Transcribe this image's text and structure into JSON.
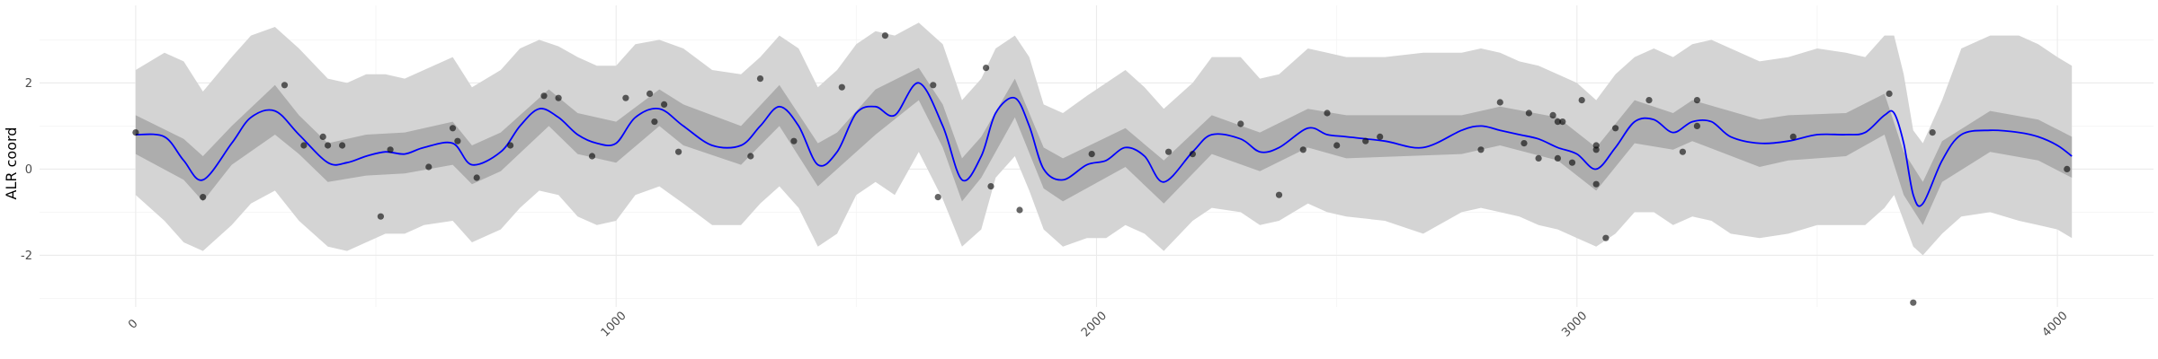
{
  "chart_data": {
    "type": "line",
    "title": "",
    "xlabel": "",
    "ylabel": "ALR coord",
    "xlim": [
      -200,
      4200
    ],
    "ylim": [
      -3.2,
      3.8
    ],
    "x_ticks": [
      0,
      1000,
      2000,
      3000,
      4000
    ],
    "x_tick_labels": [
      "0",
      "1000",
      "2000",
      "3000",
      "4000"
    ],
    "x_tick_rotation_deg": 45,
    "y_ticks": [
      -2,
      0,
      2
    ],
    "y_tick_labels": [
      "-2",
      "0",
      "2"
    ],
    "grid": true,
    "legend": "none",
    "colors": {
      "mean_line": "#0000ff",
      "inner_band": "#adadad",
      "outer_band": "#d4d4d4",
      "points": "#000000"
    },
    "series": [
      {
        "role": "posterior-mean",
        "x": [
          0,
          60,
          100,
          140,
          200,
          240,
          290,
          340,
          400,
          440,
          480,
          520,
          560,
          600,
          660,
          700,
          760,
          800,
          840,
          880,
          920,
          960,
          1000,
          1040,
          1090,
          1140,
          1200,
          1260,
          1300,
          1340,
          1380,
          1420,
          1460,
          1500,
          1540,
          1580,
          1630,
          1680,
          1720,
          1760,
          1790,
          1830,
          1860,
          1890,
          1930,
          1980,
          2020,
          2060,
          2100,
          2140,
          2200,
          2240,
          2300,
          2340,
          2380,
          2440,
          2480,
          2520,
          2600,
          2680,
          2760,
          2800,
          2840,
          2880,
          2920,
          2960,
          3000,
          3040,
          3080,
          3120,
          3160,
          3200,
          3240,
          3280,
          3320,
          3380,
          3440,
          3500,
          3560,
          3600,
          3640,
          3660,
          3680,
          3700,
          3720,
          3760,
          3800,
          3860,
          3920,
          3960,
          4000,
          4030
        ],
        "y": [
          0.8,
          0.75,
          0.2,
          -0.25,
          0.6,
          1.2,
          1.35,
          0.8,
          0.15,
          0.15,
          0.3,
          0.4,
          0.35,
          0.5,
          0.6,
          0.1,
          0.4,
          1.0,
          1.4,
          1.2,
          0.8,
          0.6,
          0.6,
          1.2,
          1.4,
          1.0,
          0.55,
          0.55,
          1.0,
          1.45,
          1.0,
          0.1,
          0.4,
          1.3,
          1.45,
          1.25,
          2.0,
          1.0,
          -0.25,
          0.3,
          1.3,
          1.65,
          1.0,
          0.0,
          -0.25,
          0.1,
          0.2,
          0.5,
          0.3,
          -0.3,
          0.4,
          0.8,
          0.7,
          0.4,
          0.5,
          0.95,
          0.8,
          0.75,
          0.65,
          0.5,
          0.9,
          1.0,
          0.9,
          0.8,
          0.7,
          0.5,
          0.35,
          0.0,
          0.5,
          1.1,
          1.15,
          0.85,
          1.1,
          1.1,
          0.75,
          0.6,
          0.65,
          0.8,
          0.8,
          0.85,
          1.25,
          1.3,
          0.6,
          -0.6,
          -0.8,
          0.2,
          0.8,
          0.9,
          0.85,
          0.75,
          0.55,
          0.3
        ]
      },
      {
        "role": "inner-band-upper",
        "x": [
          0,
          100,
          140,
          200,
          290,
          340,
          400,
          480,
          560,
          660,
          700,
          760,
          860,
          920,
          1000,
          1090,
          1140,
          1260,
          1340,
          1420,
          1460,
          1540,
          1630,
          1680,
          1720,
          1760,
          1830,
          1890,
          1930,
          2060,
          2140,
          2240,
          2340,
          2440,
          2520,
          2760,
          2840,
          2960,
          3040,
          3120,
          3200,
          3240,
          3380,
          3440,
          3560,
          3640,
          3680,
          3720,
          3760,
          3860,
          3960,
          4030
        ],
        "y": [
          1.25,
          0.7,
          0.3,
          1.0,
          1.95,
          1.25,
          0.6,
          0.8,
          0.85,
          1.1,
          0.55,
          0.85,
          1.85,
          1.3,
          1.1,
          1.85,
          1.5,
          1.0,
          1.95,
          0.6,
          0.85,
          1.85,
          2.35,
          1.5,
          0.25,
          0.75,
          2.1,
          0.5,
          0.25,
          0.95,
          0.2,
          1.25,
          0.85,
          1.4,
          1.25,
          1.25,
          1.45,
          1.2,
          0.5,
          1.6,
          1.3,
          1.6,
          1.15,
          1.25,
          1.3,
          1.75,
          0.4,
          -0.3,
          0.65,
          1.35,
          1.15,
          0.75
        ]
      },
      {
        "role": "inner-band-lower",
        "x": [
          0,
          100,
          140,
          200,
          290,
          340,
          400,
          480,
          560,
          660,
          700,
          760,
          860,
          920,
          1000,
          1090,
          1140,
          1260,
          1340,
          1420,
          1460,
          1540,
          1630,
          1680,
          1720,
          1760,
          1830,
          1890,
          1930,
          2060,
          2140,
          2240,
          2340,
          2440,
          2520,
          2760,
          2840,
          2960,
          3040,
          3120,
          3200,
          3240,
          3380,
          3440,
          3560,
          3640,
          3680,
          3720,
          3760,
          3860,
          3960,
          4030
        ],
        "y": [
          0.35,
          -0.25,
          -0.75,
          0.1,
          0.8,
          0.35,
          -0.3,
          -0.15,
          -0.1,
          0.1,
          -0.35,
          -0.05,
          1.0,
          0.35,
          0.15,
          1.0,
          0.55,
          0.1,
          1.0,
          -0.4,
          0.0,
          0.8,
          1.6,
          0.5,
          -0.75,
          -0.2,
          1.2,
          -0.45,
          -0.75,
          0.05,
          -0.8,
          0.35,
          -0.05,
          0.5,
          0.25,
          0.35,
          0.55,
          0.2,
          -0.5,
          0.6,
          0.45,
          0.65,
          0.05,
          0.2,
          0.3,
          0.8,
          -0.6,
          -1.3,
          -0.3,
          0.4,
          0.2,
          -0.2
        ]
      },
      {
        "role": "outer-band-upper",
        "x": [
          0,
          60,
          100,
          140,
          200,
          240,
          290,
          340,
          400,
          440,
          480,
          520,
          560,
          600,
          660,
          700,
          760,
          800,
          840,
          880,
          920,
          960,
          1000,
          1040,
          1090,
          1140,
          1200,
          1260,
          1300,
          1340,
          1380,
          1420,
          1460,
          1500,
          1540,
          1580,
          1630,
          1680,
          1720,
          1760,
          1790,
          1830,
          1860,
          1890,
          1930,
          1980,
          2020,
          2060,
          2100,
          2140,
          2200,
          2240,
          2300,
          2340,
          2380,
          2440,
          2480,
          2520,
          2600,
          2680,
          2760,
          2800,
          2840,
          2880,
          2920,
          2960,
          3000,
          3040,
          3080,
          3120,
          3160,
          3200,
          3240,
          3280,
          3320,
          3380,
          3440,
          3500,
          3560,
          3600,
          3640,
          3660,
          3680,
          3700,
          3720,
          3760,
          3800,
          3860,
          3920,
          3960,
          4000,
          4030
        ],
        "y": [
          2.3,
          2.7,
          2.5,
          1.8,
          2.6,
          3.1,
          3.3,
          2.8,
          2.1,
          2.0,
          2.2,
          2.2,
          2.1,
          2.3,
          2.6,
          1.9,
          2.3,
          2.8,
          3.0,
          2.85,
          2.6,
          2.4,
          2.4,
          2.9,
          3.0,
          2.8,
          2.3,
          2.2,
          2.6,
          3.1,
          2.8,
          1.9,
          2.3,
          2.9,
          3.2,
          3.1,
          3.4,
          2.9,
          1.6,
          2.1,
          2.8,
          3.1,
          2.6,
          1.5,
          1.3,
          1.7,
          2.0,
          2.3,
          1.9,
          1.4,
          2.0,
          2.6,
          2.6,
          2.1,
          2.2,
          2.8,
          2.7,
          2.6,
          2.6,
          2.7,
          2.7,
          2.8,
          2.7,
          2.5,
          2.4,
          2.2,
          2.0,
          1.6,
          2.2,
          2.6,
          2.8,
          2.6,
          2.9,
          3.0,
          2.8,
          2.5,
          2.6,
          2.8,
          2.7,
          2.6,
          3.1,
          3.1,
          2.2,
          0.9,
          0.6,
          1.6,
          2.8,
          3.1,
          3.1,
          2.9,
          2.6,
          2.4
        ]
      },
      {
        "role": "outer-band-lower",
        "x": [
          0,
          60,
          100,
          140,
          200,
          240,
          290,
          340,
          400,
          440,
          480,
          520,
          560,
          600,
          660,
          700,
          760,
          800,
          840,
          880,
          920,
          960,
          1000,
          1040,
          1090,
          1140,
          1200,
          1260,
          1300,
          1340,
          1380,
          1420,
          1460,
          1500,
          1540,
          1580,
          1630,
          1680,
          1720,
          1760,
          1790,
          1830,
          1860,
          1890,
          1930,
          1980,
          2020,
          2060,
          2100,
          2140,
          2200,
          2240,
          2300,
          2340,
          2380,
          2440,
          2480,
          2520,
          2600,
          2680,
          2760,
          2800,
          2840,
          2880,
          2920,
          2960,
          3000,
          3040,
          3080,
          3120,
          3160,
          3200,
          3240,
          3280,
          3320,
          3380,
          3440,
          3500,
          3560,
          3600,
          3640,
          3660,
          3680,
          3700,
          3720,
          3760,
          3800,
          3860,
          3920,
          3960,
          4000,
          4030
        ],
        "y": [
          -0.6,
          -1.2,
          -1.7,
          -1.9,
          -1.3,
          -0.8,
          -0.5,
          -1.2,
          -1.8,
          -1.9,
          -1.7,
          -1.5,
          -1.5,
          -1.3,
          -1.2,
          -1.7,
          -1.4,
          -0.9,
          -0.5,
          -0.6,
          -1.1,
          -1.3,
          -1.2,
          -0.6,
          -0.4,
          -0.8,
          -1.3,
          -1.3,
          -0.8,
          -0.4,
          -0.9,
          -1.8,
          -1.5,
          -0.6,
          -0.3,
          -0.6,
          0.4,
          -0.7,
          -1.8,
          -1.4,
          -0.2,
          0.3,
          -0.5,
          -1.4,
          -1.8,
          -1.6,
          -1.6,
          -1.3,
          -1.5,
          -1.9,
          -1.2,
          -0.9,
          -1.0,
          -1.3,
          -1.2,
          -0.8,
          -1.0,
          -1.1,
          -1.2,
          -1.5,
          -1.0,
          -0.9,
          -1.0,
          -1.1,
          -1.3,
          -1.4,
          -1.6,
          -1.8,
          -1.5,
          -1.0,
          -1.0,
          -1.3,
          -1.1,
          -1.2,
          -1.5,
          -1.6,
          -1.5,
          -1.3,
          -1.3,
          -1.3,
          -0.9,
          -0.6,
          -1.2,
          -1.8,
          -2.0,
          -1.5,
          -1.1,
          -1.0,
          -1.2,
          -1.3,
          -1.4,
          -1.6
        ]
      },
      {
        "role": "observations",
        "x": [
          0,
          140,
          310,
          350,
          390,
          400,
          430,
          510,
          530,
          610,
          660,
          670,
          710,
          780,
          850,
          880,
          950,
          1020,
          1070,
          1080,
          1100,
          1130,
          1280,
          1300,
          1370,
          1470,
          1560,
          1660,
          1670,
          1770,
          1780,
          1840,
          1990,
          2150,
          2200,
          2300,
          2380,
          2430,
          2480,
          2500,
          2560,
          2590,
          2800,
          2840,
          2890,
          2900,
          2920,
          2950,
          2960,
          2960,
          2970,
          2990,
          3010,
          3040,
          3040,
          3040,
          3060,
          3080,
          3150,
          3220,
          3250,
          3250,
          3450,
          3650,
          3700,
          3740,
          4020
        ],
        "y": [
          0.85,
          -0.65,
          1.95,
          0.55,
          0.75,
          0.55,
          0.55,
          -1.1,
          0.45,
          0.05,
          0.95,
          0.65,
          -0.2,
          0.55,
          1.7,
          1.65,
          0.3,
          1.65,
          1.75,
          1.1,
          1.5,
          0.4,
          0.3,
          2.1,
          0.65,
          1.9,
          3.1,
          1.95,
          -0.65,
          2.35,
          -0.4,
          -0.95,
          0.35,
          0.4,
          0.35,
          1.05,
          -0.6,
          0.45,
          1.3,
          0.55,
          0.65,
          0.75,
          0.45,
          1.55,
          0.6,
          1.3,
          0.25,
          1.25,
          0.25,
          1.1,
          1.1,
          0.15,
          1.6,
          0.55,
          0.45,
          -0.35,
          -1.6,
          0.95,
          1.6,
          0.4,
          1.0,
          1.6,
          0.75,
          1.75,
          -3.1,
          0.85,
          0.0
        ]
      }
    ]
  }
}
